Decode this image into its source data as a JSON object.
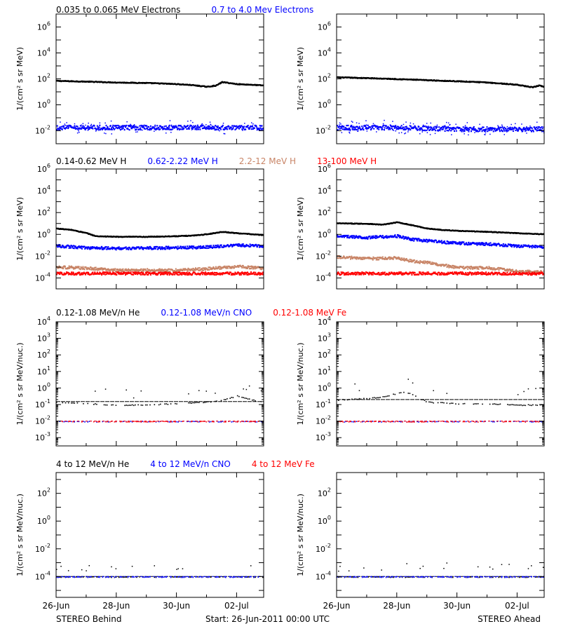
{
  "colors": {
    "black": "#000000",
    "blue": "#0000ff",
    "tan": "#c88466",
    "red": "#ff0000"
  },
  "row_titles": [
    [
      {
        "text": "0.035 to 0.065 MeV Electrons",
        "color": "black"
      },
      {
        "text": "0.7 to 4.0 Mev Electrons",
        "color": "blue"
      }
    ],
    [
      {
        "text": "0.14-0.62 MeV H",
        "color": "black"
      },
      {
        "text": "0.62-2.22 MeV H",
        "color": "blue"
      },
      {
        "text": "2.2-12 MeV H",
        "color": "tan"
      },
      {
        "text": "13-100 MeV H",
        "color": "red"
      }
    ],
    [
      {
        "text": "0.12-1.08 MeV/n He",
        "color": "black"
      },
      {
        "text": "0.12-1.08 MeV/n CNO",
        "color": "blue"
      },
      {
        "text": "0.12-1.08 MeV Fe",
        "color": "red"
      }
    ],
    [
      {
        "text": "4 to 12 MeV/n He",
        "color": "black"
      },
      {
        "text": "4 to 12 MeV/n CNO",
        "color": "blue"
      },
      {
        "text": "4 to 12 MeV Fe",
        "color": "red"
      }
    ]
  ],
  "footer": {
    "left": "STEREO Behind",
    "center": "Start: 26-Jun-2011 00:00 UTC",
    "right": "STEREO Ahead"
  },
  "chart_data": [
    {
      "id": "electrons-behind",
      "type": "scatter",
      "row": 0,
      "col": 0,
      "ylabel": "1/(cm² s sr MeV)",
      "yscale": "log",
      "ylim_exp": [
        -3,
        7
      ],
      "ytick_exps": [
        -2,
        0,
        2,
        4,
        6
      ],
      "xlim_day": [
        26,
        30.9
      ],
      "series": [
        {
          "name": "0.035 to 0.065 MeV Electrons",
          "color": "black",
          "x": [
            26.0,
            27.0,
            28.0,
            29.0,
            29.5,
            30.0,
            30.5,
            31.0,
            31.3,
            31.5,
            32.0,
            32.5,
            32.9
          ],
          "y": [
            80,
            70,
            60,
            55,
            50,
            45,
            38,
            28,
            35,
            65,
            45,
            40,
            35
          ]
        },
        {
          "name": "0.7 to 4.0 Mev Electrons",
          "color": "blue",
          "x": [
            26.0,
            28.0,
            30.0,
            32.9
          ],
          "y": [
            0.02,
            0.02,
            0.02,
            0.02
          ]
        }
      ]
    },
    {
      "id": "electrons-ahead",
      "type": "scatter",
      "row": 0,
      "col": 1,
      "ylabel": "1/(cm² s sr MeV)",
      "yscale": "log",
      "ylim_exp": [
        -3,
        7
      ],
      "ytick_exps": [
        -2,
        0,
        2,
        4,
        6
      ],
      "xlim_day": [
        26,
        30.9
      ],
      "series": [
        {
          "name": "0.035 to 0.065 MeV Electrons",
          "color": "black",
          "x": [
            26.0,
            27.0,
            28.0,
            29.0,
            30.0,
            31.0,
            32.0,
            32.5,
            32.7,
            32.9
          ],
          "y": [
            150,
            130,
            110,
            90,
            75,
            60,
            40,
            25,
            35,
            28
          ]
        },
        {
          "name": "0.7 to 4.0 Mev Electrons",
          "color": "blue",
          "x": [
            26.0,
            28.0,
            30.0,
            32.9
          ],
          "y": [
            0.02,
            0.02,
            0.015,
            0.015
          ]
        }
      ]
    },
    {
      "id": "protons-behind",
      "type": "scatter",
      "row": 1,
      "col": 0,
      "ylabel": "1/(cm² s sr MeV)",
      "yscale": "log",
      "ylim_exp": [
        -5,
        6
      ],
      "ytick_exps": [
        -4,
        -2,
        0,
        2,
        4,
        6
      ],
      "xlim_day": [
        26,
        30.9
      ],
      "series": [
        {
          "name": "0.14-0.62 MeV H",
          "color": "black",
          "x": [
            26.0,
            26.5,
            27.0,
            27.3,
            28.0,
            29.0,
            30.0,
            30.5,
            31.0,
            31.5,
            32.0,
            32.9
          ],
          "y": [
            4,
            3,
            1.5,
            0.8,
            0.7,
            0.7,
            0.8,
            0.9,
            1.2,
            2,
            1.5,
            1.0
          ]
        },
        {
          "name": "0.62-2.22 MeV H",
          "color": "blue",
          "x": [
            26.0,
            27.0,
            28.0,
            30.0,
            31.0,
            32.0,
            32.9
          ],
          "y": [
            0.1,
            0.07,
            0.06,
            0.07,
            0.08,
            0.12,
            0.1
          ]
        },
        {
          "name": "2.2-12 MeV H",
          "color": "tan",
          "x": [
            26.0,
            27.0,
            28.0,
            30.0,
            31.0,
            32.0,
            32.9
          ],
          "y": [
            0.0012,
            0.0009,
            0.0006,
            0.0006,
            0.0008,
            0.0013,
            0.0009
          ]
        },
        {
          "name": "13-100 MeV H",
          "color": "red",
          "x": [
            26.0,
            28.0,
            30.0,
            32.9
          ],
          "y": [
            0.0003,
            0.0003,
            0.0003,
            0.0003
          ]
        }
      ]
    },
    {
      "id": "protons-ahead",
      "type": "scatter",
      "row": 1,
      "col": 1,
      "ylabel": "1/(cm² s sr MeV)",
      "yscale": "log",
      "ylim_exp": [
        -5,
        6
      ],
      "ytick_exps": [
        -4,
        -2,
        0,
        2,
        4,
        6
      ],
      "xlim_day": [
        26,
        30.9
      ],
      "series": [
        {
          "name": "0.14-0.62 MeV H",
          "color": "black",
          "x": [
            26.0,
            27.0,
            27.5,
            28.0,
            28.5,
            29.0,
            29.5,
            30.0,
            31.0,
            32.0,
            32.9
          ],
          "y": [
            12,
            11,
            9,
            15,
            8,
            4,
            3,
            2.5,
            2,
            1.5,
            1.2
          ]
        },
        {
          "name": "0.62-2.22 MeV H",
          "color": "blue",
          "x": [
            26.0,
            27.0,
            28.0,
            28.5,
            29.0,
            30.0,
            31.0,
            32.0,
            32.9
          ],
          "y": [
            0.8,
            0.6,
            0.8,
            0.4,
            0.3,
            0.18,
            0.15,
            0.1,
            0.08
          ]
        },
        {
          "name": "2.2-12 MeV H",
          "color": "tan",
          "x": [
            26.0,
            27.0,
            28.0,
            28.5,
            29.0,
            30.0,
            31.0,
            32.0,
            32.9
          ],
          "y": [
            0.01,
            0.007,
            0.008,
            0.004,
            0.003,
            0.001,
            0.001,
            0.0005,
            0.0004
          ]
        },
        {
          "name": "13-100 MeV H",
          "color": "red",
          "x": [
            26.0,
            28.0,
            30.0,
            32.9
          ],
          "y": [
            0.0003,
            0.0003,
            0.0003,
            0.0003
          ]
        }
      ]
    },
    {
      "id": "suprathermal-behind",
      "type": "scatter",
      "row": 2,
      "col": 0,
      "ylabel": "1/(cm² s sr MeV/nuc.)",
      "yscale": "log",
      "ylim_exp": [
        -3.5,
        4
      ],
      "ytick_exps": [
        -3,
        -2,
        -1,
        0,
        1,
        2,
        3,
        4
      ],
      "xlim_day": [
        26,
        30.9
      ],
      "series": [
        {
          "name": "0.12-1.08 MeV/n He",
          "color": "black",
          "x": [
            26.0,
            27.0,
            28.0,
            29.0,
            30.0,
            31.0,
            31.5,
            32.0,
            32.5,
            32.9
          ],
          "y": [
            0.15,
            0.12,
            0.1,
            0.1,
            0.12,
            0.15,
            0.2,
            0.35,
            0.2,
            0.15
          ]
        },
        {
          "name": "0.12-1.08 MeV/n CNO",
          "color": "blue",
          "x": [
            26.0,
            28.0,
            30.0,
            32.9
          ],
          "y": [
            0.01,
            0.01,
            0.01,
            0.01
          ]
        },
        {
          "name": "0.12-1.08 MeV Fe",
          "color": "red",
          "x": [
            26.0,
            28.0,
            30.0,
            32.9
          ],
          "y": [
            0.01,
            0.01,
            0.01,
            0.01
          ]
        }
      ]
    },
    {
      "id": "suprathermal-ahead",
      "type": "scatter",
      "row": 2,
      "col": 1,
      "ylabel": "1/(cm² s sr MeV/nuc.)",
      "yscale": "log",
      "ylim_exp": [
        -3.5,
        4
      ],
      "ytick_exps": [
        -3,
        -2,
        -1,
        0,
        1,
        2,
        3,
        4
      ],
      "xlim_day": [
        26,
        30.9
      ],
      "series": [
        {
          "name": "0.12-1.08 MeV/n He",
          "color": "black",
          "x": [
            26.0,
            27.0,
            27.5,
            28.0,
            28.3,
            28.6,
            29.0,
            30.0,
            31.0,
            32.0,
            32.9
          ],
          "y": [
            0.2,
            0.25,
            0.3,
            0.5,
            0.6,
            0.35,
            0.15,
            0.12,
            0.12,
            0.1,
            0.1
          ]
        },
        {
          "name": "0.12-1.08 MeV/n CNO",
          "color": "blue",
          "x": [
            26.0,
            28.0,
            30.0,
            32.9
          ],
          "y": [
            0.01,
            0.01,
            0.01,
            0.01
          ]
        },
        {
          "name": "0.12-1.08 MeV Fe",
          "color": "red",
          "x": [
            26.0,
            28.0,
            30.0,
            32.9
          ],
          "y": [
            0.01,
            0.01,
            0.01,
            0.01
          ]
        }
      ]
    },
    {
      "id": "energetic-behind",
      "type": "scatter",
      "row": 3,
      "col": 0,
      "ylabel": "1/(cm² s sr MeV/nuc.)",
      "yscale": "log",
      "ylim_exp": [
        -5.5,
        3.5
      ],
      "ytick_exps": [
        -4,
        -2,
        0,
        2
      ],
      "xlim_day": [
        26,
        30.9
      ],
      "xtick_labels": [
        "26-Jun",
        "28-Jun",
        "30-Jun",
        "02-Jul"
      ],
      "series": [
        {
          "name": "4 to 12 MeV/n He",
          "color": "black",
          "x": [
            26.0,
            28.0,
            30.0,
            32.9
          ],
          "y": [
            0.0001,
            0.0001,
            0.0001,
            0.0001
          ]
        },
        {
          "name": "4 to 12 MeV/n CNO",
          "color": "blue",
          "x": [
            26.0,
            28.0,
            30.0,
            32.9
          ],
          "y": [
            0.0001,
            0.0001,
            0.0001,
            0.0001
          ]
        },
        {
          "name": "4 to 12 MeV Fe",
          "color": "red",
          "x": [],
          "y": []
        }
      ]
    },
    {
      "id": "energetic-ahead",
      "type": "scatter",
      "row": 3,
      "col": 1,
      "ylabel": "1/(cm² s sr MeV/nuc.)",
      "yscale": "log",
      "ylim_exp": [
        -5.5,
        3.5
      ],
      "ytick_exps": [
        -4,
        -2,
        0,
        2
      ],
      "xlim_day": [
        26,
        30.9
      ],
      "xtick_labels": [
        "26-Jun",
        "28-Jun",
        "30-Jun",
        "02-Jul"
      ],
      "series": [
        {
          "name": "4 to 12 MeV/n He",
          "color": "black",
          "x": [
            26.0,
            28.0,
            30.0,
            32.9
          ],
          "y": [
            0.0001,
            0.0001,
            0.0001,
            0.0001
          ]
        },
        {
          "name": "4 to 12 MeV/n CNO",
          "color": "blue",
          "x": [
            26.0,
            28.0,
            30.0,
            32.9
          ],
          "y": [
            0.0001,
            0.0001,
            0.0001,
            0.0001
          ]
        },
        {
          "name": "4 to 12 MeV Fe",
          "color": "red",
          "x": [],
          "y": []
        }
      ]
    }
  ]
}
